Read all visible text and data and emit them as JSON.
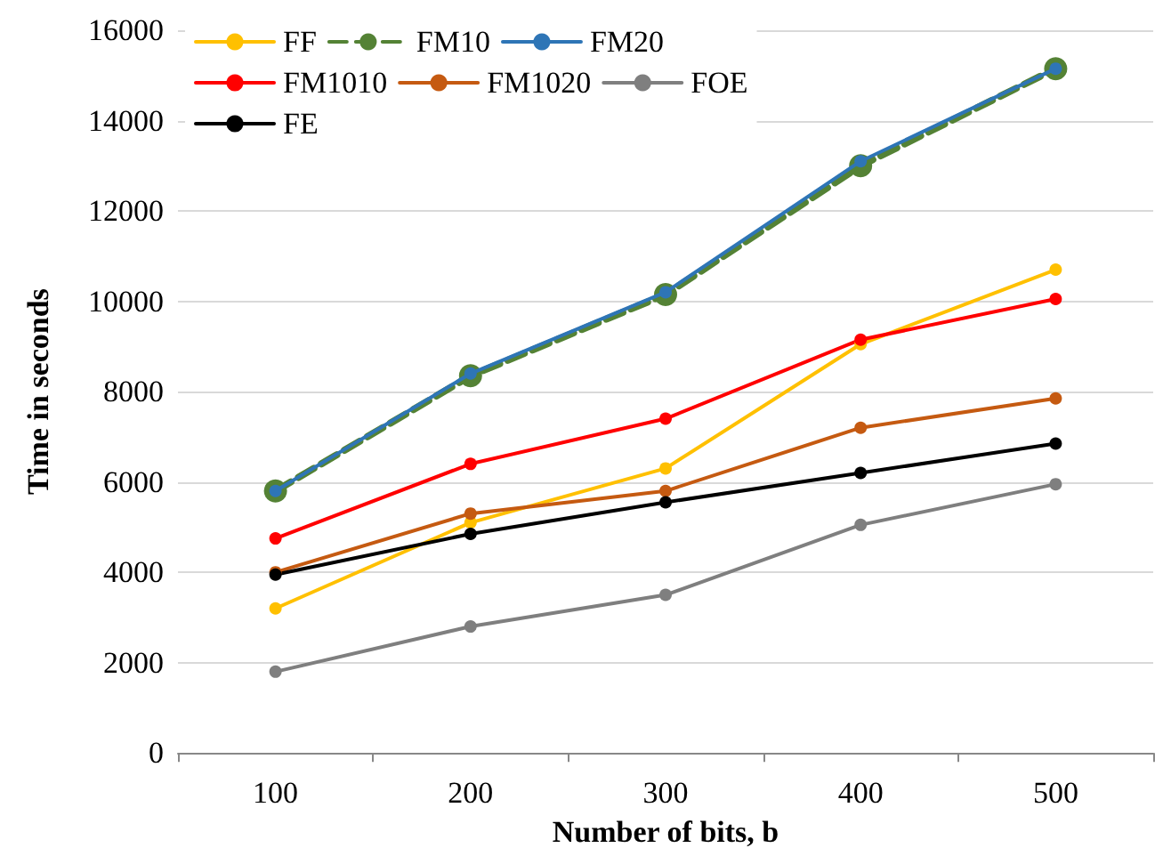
{
  "chart_data": {
    "type": "line",
    "xlabel": "Number of bits, b",
    "ylabel": "Time in seconds",
    "categories": [
      "100",
      "200",
      "300",
      "400",
      "500"
    ],
    "ylim": [
      0,
      16000
    ],
    "yticks": [
      0,
      2000,
      4000,
      6000,
      8000,
      10000,
      12000,
      14000,
      16000
    ],
    "grid": "y",
    "legend": "top left",
    "marker": "circle",
    "series": [
      {
        "name": "FF",
        "color": "#ffc000",
        "line_style": "solid",
        "values": [
          3200,
          5100,
          6300,
          9050,
          10700
        ]
      },
      {
        "name": "FM10",
        "color": "#548235",
        "line_style": "dashed",
        "values": [
          5800,
          8350,
          10150,
          13000,
          15150
        ]
      },
      {
        "name": "FM20",
        "color": "#2e75b6",
        "line_style": "solid",
        "values": [
          5800,
          8400,
          10200,
          13100,
          15150
        ]
      },
      {
        "name": "FM1010",
        "color": "#ff0000",
        "line_style": "solid",
        "values": [
          4750,
          6400,
          7400,
          9150,
          10050
        ]
      },
      {
        "name": "FM1020",
        "color": "#c55a11",
        "line_style": "solid",
        "values": [
          4000,
          5300,
          5800,
          7200,
          7850
        ]
      },
      {
        "name": "FOE",
        "color": "#7f7f7f",
        "line_style": "solid",
        "values": [
          1800,
          2800,
          3500,
          5050,
          5950
        ]
      },
      {
        "name": "FE",
        "color": "#000000",
        "line_style": "solid",
        "values": [
          3950,
          4850,
          5550,
          6200,
          6850
        ]
      }
    ]
  }
}
